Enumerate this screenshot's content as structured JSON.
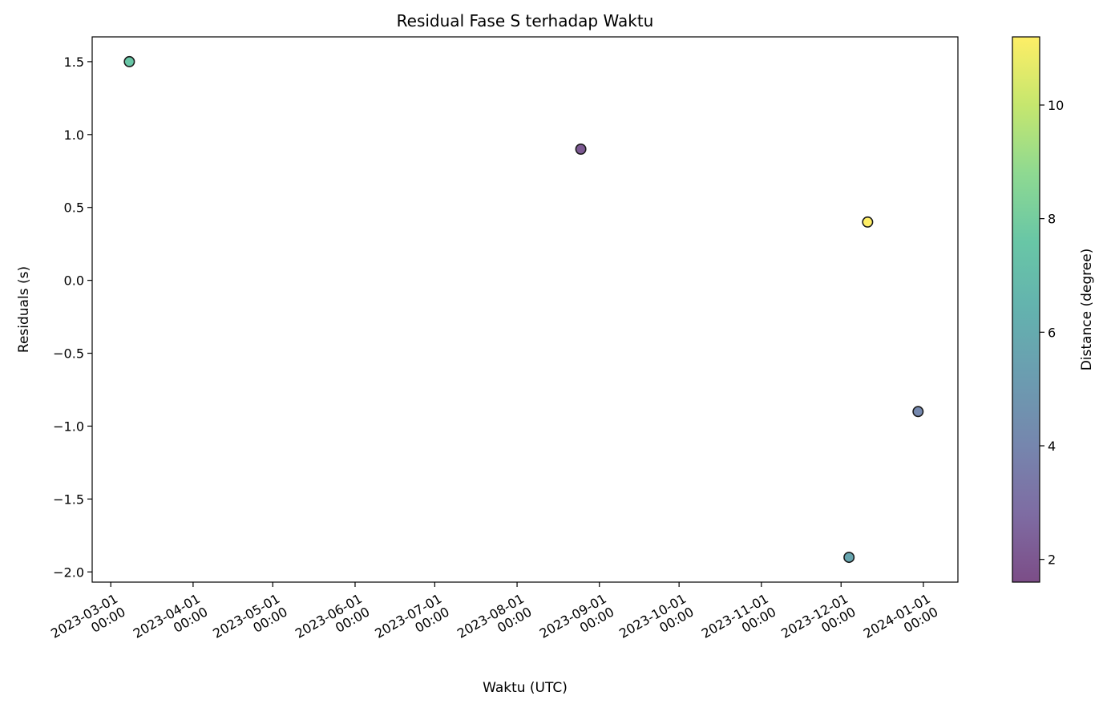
{
  "chart_data": {
    "type": "scatter",
    "title": "Residual Fase S terhadap Waktu",
    "xlabel": "Waktu (UTC)",
    "ylabel": "Residuals (s)",
    "x_axis": "date",
    "xlim": [
      "2023-02-22",
      "2024-01-14"
    ],
    "ylim": [
      -2.07,
      1.67
    ],
    "xticks": [
      {
        "date": "2023-03-01",
        "line1": "2023-03-01",
        "line2": "00:00"
      },
      {
        "date": "2023-04-01",
        "line1": "2023-04-01",
        "line2": "00:00"
      },
      {
        "date": "2023-05-01",
        "line1": "2023-05-01",
        "line2": "00:00"
      },
      {
        "date": "2023-06-01",
        "line1": "2023-06-01",
        "line2": "00:00"
      },
      {
        "date": "2023-07-01",
        "line1": "2023-07-01",
        "line2": "00:00"
      },
      {
        "date": "2023-08-01",
        "line1": "2023-08-01",
        "line2": "00:00"
      },
      {
        "date": "2023-09-01",
        "line1": "2023-09-01",
        "line2": "00:00"
      },
      {
        "date": "2023-10-01",
        "line1": "2023-10-01",
        "line2": "00:00"
      },
      {
        "date": "2023-11-01",
        "line1": "2023-11-01",
        "line2": "00:00"
      },
      {
        "date": "2023-12-01",
        "line1": "2023-12-01",
        "line2": "00:00"
      },
      {
        "date": "2024-01-01",
        "line1": "2024-01-01",
        "line2": "00:00"
      }
    ],
    "yticks": [
      {
        "value": 1.5,
        "label": "1.5"
      },
      {
        "value": 1.0,
        "label": "1.0"
      },
      {
        "value": 0.5,
        "label": "0.5"
      },
      {
        "value": 0.0,
        "label": "0.0"
      },
      {
        "value": -0.5,
        "label": "−0.5"
      },
      {
        "value": -1.0,
        "label": "−1.0"
      },
      {
        "value": -1.5,
        "label": "−1.5"
      },
      {
        "value": -2.0,
        "label": "−2.0"
      }
    ],
    "points": [
      {
        "date": "2023-03-08",
        "residual": 1.5,
        "distance": 7.6
      },
      {
        "date": "2023-08-25",
        "residual": 0.9,
        "distance": 2.1
      },
      {
        "date": "2023-12-11",
        "residual": 0.4,
        "distance": 11.2
      },
      {
        "date": "2023-12-04",
        "residual": -1.9,
        "distance": 5.7
      },
      {
        "date": "2023-12-30",
        "residual": -0.9,
        "distance": 4.1
      }
    ],
    "colorbar": {
      "label": "Distance (degree)",
      "colormap": "viridis",
      "alpha": 0.7,
      "range": [
        1.6,
        11.2
      ],
      "ticks": [
        {
          "value": 2,
          "label": "2"
        },
        {
          "value": 4,
          "label": "4"
        },
        {
          "value": 6,
          "label": "6"
        },
        {
          "value": 8,
          "label": "8"
        },
        {
          "value": 10,
          "label": "10"
        }
      ]
    },
    "grid": false,
    "legend": "none"
  }
}
